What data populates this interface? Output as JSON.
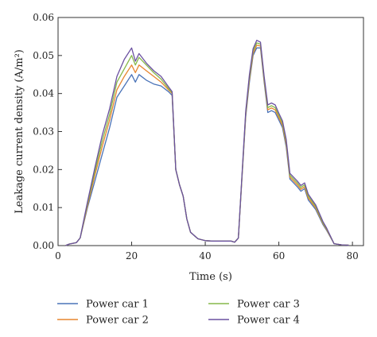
{
  "chart_data": {
    "type": "line",
    "xlabel": "Time (s)",
    "ylabel": "Leakage current density (A/m²)",
    "xlim": [
      0,
      83
    ],
    "ylim": [
      0,
      0.06
    ],
    "x_ticks": [
      0,
      20,
      40,
      60,
      80
    ],
    "x_tick_labels": [
      "0",
      "20",
      "40",
      "60",
      "80"
    ],
    "y_ticks": [
      0,
      0.01,
      0.02,
      0.03,
      0.04,
      0.05,
      0.06
    ],
    "y_tick_labels": [
      "0.00",
      "0.01",
      "0.02",
      "0.03",
      "0.04",
      "0.05",
      "0.06"
    ],
    "grid": false,
    "legend_position": "bottom",
    "series": [
      {
        "name": "Power car 1",
        "color": "#4a73b8",
        "points": [
          [
            2,
            0
          ],
          [
            3,
            0.0004
          ],
          [
            5,
            0.0008
          ],
          [
            6,
            0.002
          ],
          [
            7,
            0.006
          ],
          [
            8,
            0.01
          ],
          [
            10,
            0.017
          ],
          [
            12,
            0.024
          ],
          [
            14,
            0.031
          ],
          [
            16,
            0.039
          ],
          [
            18,
            0.042
          ],
          [
            20,
            0.045
          ],
          [
            21,
            0.043
          ],
          [
            22,
            0.045
          ],
          [
            24,
            0.0435
          ],
          [
            26,
            0.0425
          ],
          [
            28,
            0.042
          ],
          [
            30,
            0.0405
          ],
          [
            31,
            0.0395
          ],
          [
            32,
            0.02
          ],
          [
            33,
            0.016
          ],
          [
            34,
            0.013
          ],
          [
            35,
            0.007
          ],
          [
            36,
            0.0035
          ],
          [
            38,
            0.0018
          ],
          [
            40,
            0.0013
          ],
          [
            42,
            0.0012
          ],
          [
            44,
            0.0012
          ],
          [
            47,
            0.0012
          ],
          [
            48,
            0.0009
          ],
          [
            49,
            0.002
          ],
          [
            50,
            0.018
          ],
          [
            51,
            0.034
          ],
          [
            52,
            0.043
          ],
          [
            53,
            0.05
          ],
          [
            54,
            0.052
          ],
          [
            55,
            0.052
          ],
          [
            56,
            0.043
          ],
          [
            57,
            0.035
          ],
          [
            58,
            0.0355
          ],
          [
            59,
            0.035
          ],
          [
            60,
            0.033
          ],
          [
            61,
            0.031
          ],
          [
            62,
            0.026
          ],
          [
            63,
            0.0175
          ],
          [
            64,
            0.0165
          ],
          [
            65,
            0.0155
          ],
          [
            66,
            0.0143
          ],
          [
            67,
            0.015
          ],
          [
            68,
            0.012
          ],
          [
            70,
            0.0095
          ],
          [
            72,
            0.0055
          ],
          [
            73,
            0.004
          ],
          [
            75,
            0.0005
          ],
          [
            77,
            0.0002
          ],
          [
            79,
            0.0001
          ]
        ]
      },
      {
        "name": "Power car 2",
        "color": "#e7852e",
        "points": [
          [
            2,
            0
          ],
          [
            3,
            0.0004
          ],
          [
            5,
            0.0008
          ],
          [
            6,
            0.002
          ],
          [
            7,
            0.0062
          ],
          [
            8,
            0.0105
          ],
          [
            10,
            0.0185
          ],
          [
            12,
            0.026
          ],
          [
            14,
            0.033
          ],
          [
            16,
            0.041
          ],
          [
            18,
            0.0445
          ],
          [
            20,
            0.0475
          ],
          [
            21,
            0.0455
          ],
          [
            22,
            0.0475
          ],
          [
            24,
            0.046
          ],
          [
            26,
            0.0445
          ],
          [
            28,
            0.043
          ],
          [
            30,
            0.041
          ],
          [
            31,
            0.04
          ],
          [
            32,
            0.02
          ],
          [
            33,
            0.016
          ],
          [
            34,
            0.013
          ],
          [
            35,
            0.007
          ],
          [
            36,
            0.0035
          ],
          [
            38,
            0.0018
          ],
          [
            40,
            0.0013
          ],
          [
            42,
            0.0012
          ],
          [
            44,
            0.0012
          ],
          [
            47,
            0.0012
          ],
          [
            48,
            0.0009
          ],
          [
            49,
            0.002
          ],
          [
            50,
            0.0182
          ],
          [
            51,
            0.0345
          ],
          [
            52,
            0.0437
          ],
          [
            53,
            0.0505
          ],
          [
            54,
            0.0527
          ],
          [
            55,
            0.0525
          ],
          [
            56,
            0.0435
          ],
          [
            57,
            0.0357
          ],
          [
            58,
            0.0362
          ],
          [
            59,
            0.0357
          ],
          [
            60,
            0.0336
          ],
          [
            61,
            0.0316
          ],
          [
            62,
            0.0267
          ],
          [
            63,
            0.018
          ],
          [
            64,
            0.017
          ],
          [
            65,
            0.016
          ],
          [
            66,
            0.0148
          ],
          [
            67,
            0.0155
          ],
          [
            68,
            0.0125
          ],
          [
            70,
            0.0099
          ],
          [
            72,
            0.0058
          ],
          [
            73,
            0.0042
          ],
          [
            75,
            0.0005
          ],
          [
            77,
            0.0002
          ],
          [
            79,
            0.0001
          ]
        ]
      },
      {
        "name": "Power car 3",
        "color": "#86b84a",
        "points": [
          [
            2,
            0
          ],
          [
            3,
            0.0004
          ],
          [
            5,
            0.0008
          ],
          [
            6,
            0.002
          ],
          [
            7,
            0.0065
          ],
          [
            8,
            0.011
          ],
          [
            10,
            0.0195
          ],
          [
            12,
            0.0275
          ],
          [
            14,
            0.0345
          ],
          [
            16,
            0.043
          ],
          [
            18,
            0.0465
          ],
          [
            20,
            0.05
          ],
          [
            21,
            0.0475
          ],
          [
            22,
            0.0495
          ],
          [
            24,
            0.0475
          ],
          [
            26,
            0.0455
          ],
          [
            28,
            0.0438
          ],
          [
            30,
            0.0413
          ],
          [
            31,
            0.0402
          ],
          [
            32,
            0.02
          ],
          [
            33,
            0.016
          ],
          [
            34,
            0.013
          ],
          [
            35,
            0.007
          ],
          [
            36,
            0.0035
          ],
          [
            38,
            0.0018
          ],
          [
            40,
            0.0013
          ],
          [
            42,
            0.0012
          ],
          [
            44,
            0.0012
          ],
          [
            47,
            0.0012
          ],
          [
            48,
            0.0009
          ],
          [
            49,
            0.002
          ],
          [
            50,
            0.0185
          ],
          [
            51,
            0.035
          ],
          [
            52,
            0.0443
          ],
          [
            53,
            0.0512
          ],
          [
            54,
            0.0533
          ],
          [
            55,
            0.053
          ],
          [
            56,
            0.044
          ],
          [
            57,
            0.0363
          ],
          [
            58,
            0.0368
          ],
          [
            59,
            0.0363
          ],
          [
            60,
            0.0342
          ],
          [
            61,
            0.0322
          ],
          [
            62,
            0.0274
          ],
          [
            63,
            0.0185
          ],
          [
            64,
            0.0175
          ],
          [
            65,
            0.0165
          ],
          [
            66,
            0.0153
          ],
          [
            67,
            0.016
          ],
          [
            68,
            0.013
          ],
          [
            70,
            0.0103
          ],
          [
            72,
            0.006
          ],
          [
            73,
            0.0044
          ],
          [
            75,
            0.0005
          ],
          [
            77,
            0.0002
          ],
          [
            79,
            0.0001
          ]
        ]
      },
      {
        "name": "Power car 4",
        "color": "#6a50a0",
        "points": [
          [
            2,
            0
          ],
          [
            3,
            0.0004
          ],
          [
            5,
            0.0008
          ],
          [
            6,
            0.002
          ],
          [
            7,
            0.0068
          ],
          [
            8,
            0.0115
          ],
          [
            10,
            0.0205
          ],
          [
            12,
            0.029
          ],
          [
            14,
            0.036
          ],
          [
            16,
            0.0445
          ],
          [
            18,
            0.049
          ],
          [
            20,
            0.052
          ],
          [
            21,
            0.0485
          ],
          [
            22,
            0.0505
          ],
          [
            24,
            0.048
          ],
          [
            26,
            0.046
          ],
          [
            28,
            0.0445
          ],
          [
            30,
            0.0418
          ],
          [
            31,
            0.0405
          ],
          [
            32,
            0.02
          ],
          [
            33,
            0.016
          ],
          [
            34,
            0.013
          ],
          [
            35,
            0.007
          ],
          [
            36,
            0.0035
          ],
          [
            38,
            0.0018
          ],
          [
            40,
            0.0013
          ],
          [
            42,
            0.0012
          ],
          [
            44,
            0.0012
          ],
          [
            47,
            0.0012
          ],
          [
            48,
            0.0009
          ],
          [
            49,
            0.002
          ],
          [
            50,
            0.0188
          ],
          [
            51,
            0.0355
          ],
          [
            52,
            0.045
          ],
          [
            53,
            0.0518
          ],
          [
            54,
            0.054
          ],
          [
            55,
            0.0535
          ],
          [
            56,
            0.0445
          ],
          [
            57,
            0.037
          ],
          [
            58,
            0.0375
          ],
          [
            59,
            0.037
          ],
          [
            60,
            0.0348
          ],
          [
            61,
            0.0328
          ],
          [
            62,
            0.028
          ],
          [
            63,
            0.019
          ],
          [
            64,
            0.018
          ],
          [
            65,
            0.017
          ],
          [
            66,
            0.0158
          ],
          [
            67,
            0.0165
          ],
          [
            68,
            0.0135
          ],
          [
            70,
            0.0107
          ],
          [
            72,
            0.0063
          ],
          [
            73,
            0.0046
          ],
          [
            75,
            0.0005
          ],
          [
            77,
            0.0002
          ],
          [
            79,
            0.0001
          ]
        ]
      }
    ]
  }
}
